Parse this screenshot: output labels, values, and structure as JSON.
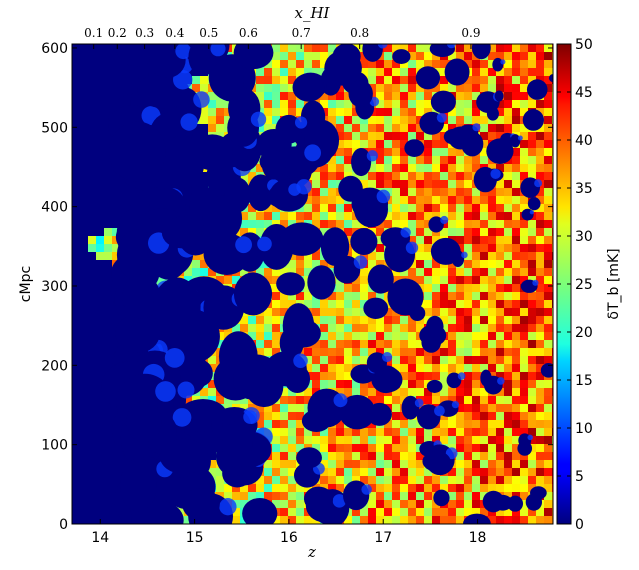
{
  "chart_data": {
    "type": "heatmap",
    "title": "",
    "xlabel": "z",
    "ylabel": "cMpc",
    "top_label": "x_HI",
    "colorbar_label": "δT_b [mK]",
    "colormap": "jet",
    "x_ticks": [
      "14",
      "15",
      "16",
      "17",
      "18"
    ],
    "x_tick_values": [
      14,
      15,
      16,
      17,
      18
    ],
    "xlim": [
      13.7,
      18.8
    ],
    "y_ticks": [
      "0",
      "100",
      "200",
      "300",
      "400",
      "500",
      "600"
    ],
    "y_tick_values": [
      0,
      100,
      200,
      300,
      400,
      500,
      600
    ],
    "ylim": [
      0,
      605
    ],
    "top_ticks": [
      {
        "label": "0.1",
        "z": 13.93
      },
      {
        "label": "0.2",
        "z": 14.18
      },
      {
        "label": "0.3",
        "z": 14.47
      },
      {
        "label": "0.4",
        "z": 14.79
      },
      {
        "label": "0.5",
        "z": 15.15
      },
      {
        "label": "0.6",
        "z": 15.57
      },
      {
        "label": "0.7",
        "z": 16.13
      },
      {
        "label": "0.8",
        "z": 16.75
      },
      {
        "label": "0.9",
        "z": 17.93
      }
    ],
    "colorbar_ticks": [
      "0",
      "5",
      "10",
      "15",
      "20",
      "25",
      "30",
      "35",
      "40",
      "45",
      "50"
    ],
    "colorbar_values": [
      0,
      5,
      10,
      15,
      20,
      25,
      30,
      35,
      40,
      45,
      50
    ],
    "clim": [
      0,
      50
    ]
  }
}
